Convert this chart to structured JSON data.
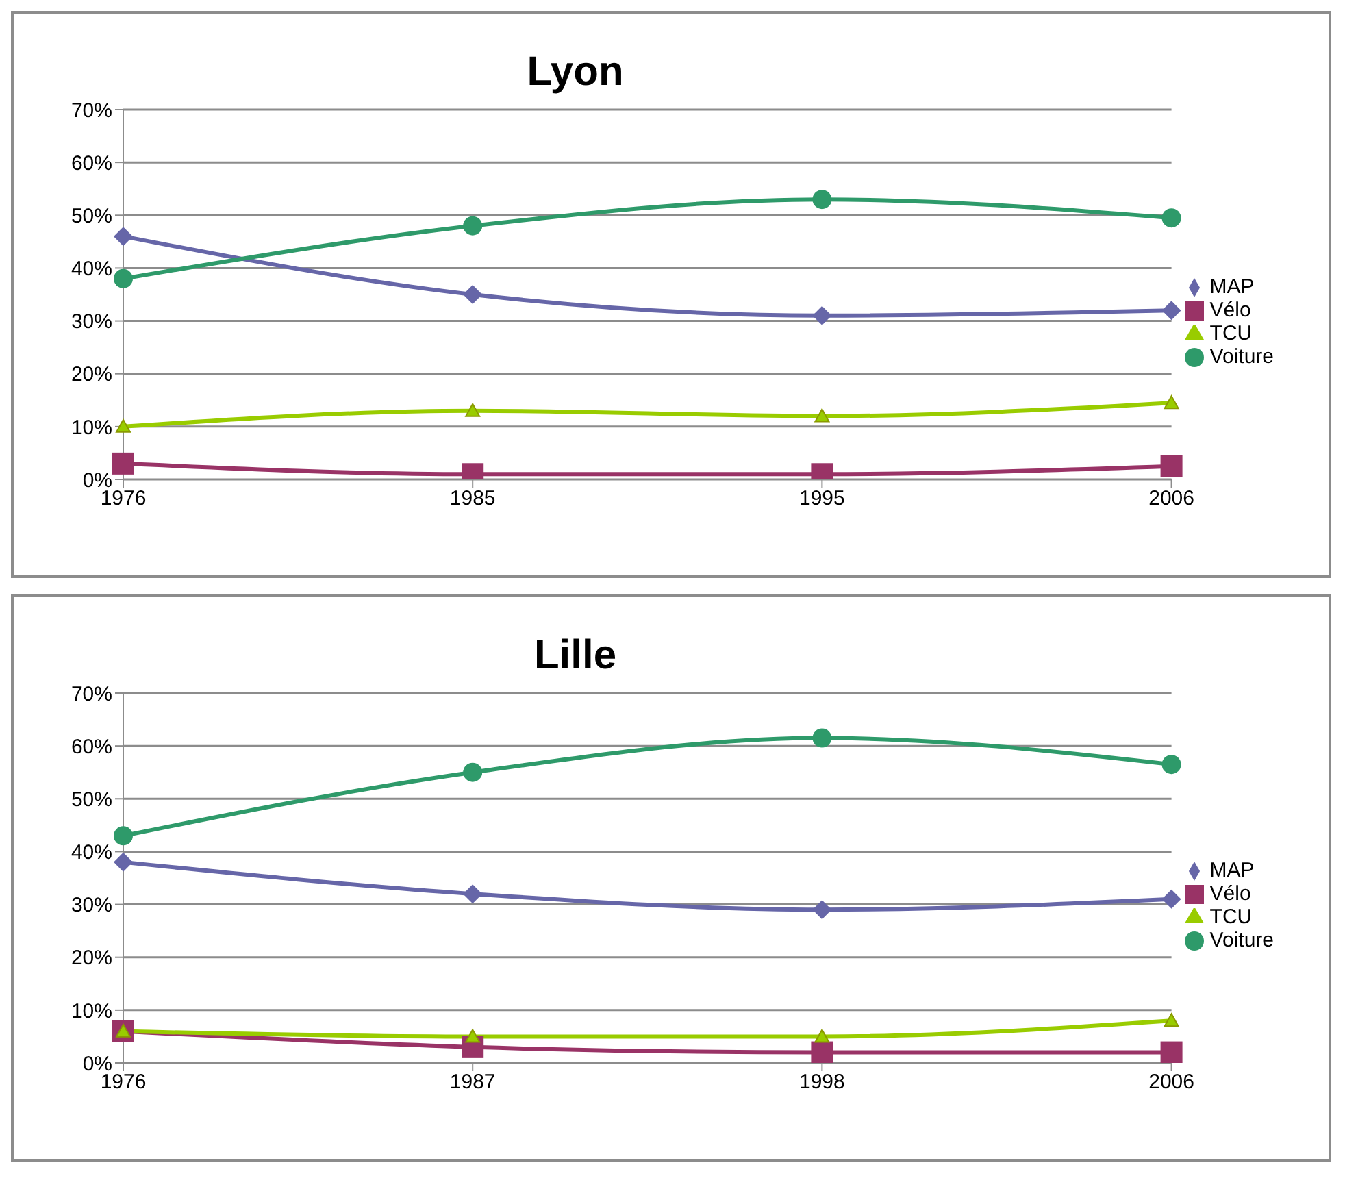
{
  "chart_data": [
    {
      "type": "line",
      "title": "Lyon",
      "categories": [
        "1976",
        "1985",
        "1995",
        "2006"
      ],
      "ylim": [
        0,
        70
      ],
      "yticks": [
        {
          "value": 0,
          "label": "0%"
        },
        {
          "value": 10,
          "label": "10%"
        },
        {
          "value": 20,
          "label": "20%"
        },
        {
          "value": 30,
          "label": "30%"
        },
        {
          "value": 40,
          "label": "40%"
        },
        {
          "value": 50,
          "label": "50%"
        },
        {
          "value": 60,
          "label": "60%"
        },
        {
          "value": 70,
          "label": "70%"
        }
      ],
      "grid": "y",
      "legend": "right",
      "series": [
        {
          "name": "MAP",
          "color": "#6666a8",
          "marker": "diamond",
          "values": [
            46,
            35,
            31,
            32
          ]
        },
        {
          "name": "Vélo",
          "color": "#993366",
          "marker": "square",
          "values": [
            3,
            1,
            1,
            2.5
          ]
        },
        {
          "name": "TCU",
          "color": "#99cc00",
          "marker": "triangle",
          "values": [
            10,
            13,
            12,
            14.5
          ]
        },
        {
          "name": "Voiture",
          "color": "#2e9a6a",
          "marker": "circle",
          "values": [
            38,
            48,
            53,
            49.5
          ]
        }
      ]
    },
    {
      "type": "line",
      "title": "Lille",
      "categories": [
        "1976",
        "1987",
        "1998",
        "2006"
      ],
      "ylim": [
        0,
        70
      ],
      "yticks": [
        {
          "value": 0,
          "label": "0%"
        },
        {
          "value": 10,
          "label": "10%"
        },
        {
          "value": 20,
          "label": "20%"
        },
        {
          "value": 30,
          "label": "30%"
        },
        {
          "value": 40,
          "label": "40%"
        },
        {
          "value": 50,
          "label": "50%"
        },
        {
          "value": 60,
          "label": "60%"
        },
        {
          "value": 70,
          "label": "70%"
        }
      ],
      "grid": "y",
      "legend": "right",
      "series": [
        {
          "name": "MAP",
          "color": "#6666a8",
          "marker": "diamond",
          "values": [
            38,
            32,
            29,
            31
          ]
        },
        {
          "name": "Vélo",
          "color": "#993366",
          "marker": "square",
          "values": [
            6,
            3,
            2,
            2
          ]
        },
        {
          "name": "TCU",
          "color": "#99cc00",
          "marker": "triangle",
          "values": [
            6,
            5,
            5,
            8
          ]
        },
        {
          "name": "Voiture",
          "color": "#2e9a6a",
          "marker": "circle",
          "values": [
            43,
            55,
            61.5,
            56.5
          ]
        }
      ]
    }
  ]
}
